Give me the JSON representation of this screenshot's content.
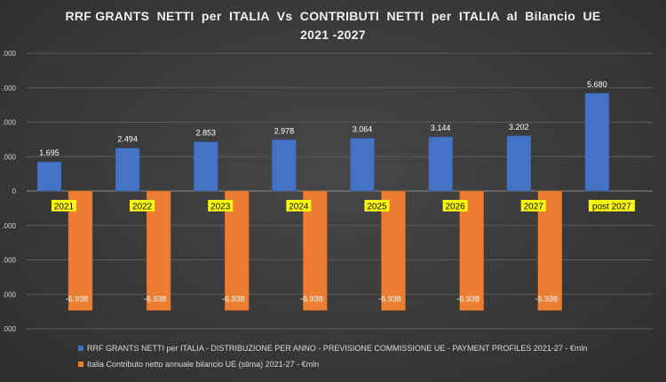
{
  "chart_data": {
    "type": "bar",
    "title_line1": "RRF GRANTS  NETTI  per  ITALIA  Vs  CONTRIBUTI  NETTI  per  ITALIA  al  Bilancio  UE",
    "title_line2": "2021 -2027",
    "categories": [
      "2021",
      "2022",
      "2023",
      "2024",
      "2025",
      "2026",
      "2027",
      "post 2027"
    ],
    "series": [
      {
        "name": "RRF GRANTS NETTI per ITALIA - DISTRIBUZIONE PER ANNO - PREVISIONE COMMISSIONE UE - PAYMENT PROFILES 2021-27 - €mln",
        "color": "#4472c4",
        "values": [
          1695,
          2494,
          2853,
          2978,
          3064,
          3144,
          3202,
          5680
        ],
        "labels": [
          "1.695",
          "2.494",
          "2.853",
          "2.978",
          "3.064",
          "3.144",
          "3.202",
          "5.680"
        ]
      },
      {
        "name": "Italia Contributo netto annuale bilancio UE (stima) 2021-27 - €mln",
        "color": "#ed7d31",
        "values": [
          -6938,
          -6938,
          -6938,
          -6938,
          -6938,
          -6938,
          -6938,
          null
        ],
        "labels": [
          "-6.938",
          "-6.938",
          "-6.938",
          "-6.938",
          "-6.938",
          "-6.938",
          "-6.938",
          ""
        ]
      }
    ],
    "yticks": [
      {
        "value": 8000,
        "label": ".000"
      },
      {
        "value": 6000,
        "label": ".000"
      },
      {
        "value": 4000,
        "label": ".000"
      },
      {
        "value": 2000,
        "label": ".000"
      },
      {
        "value": 0,
        "label": "0"
      },
      {
        "value": -2000,
        "label": ".000"
      },
      {
        "value": -4000,
        "label": ".000"
      },
      {
        "value": -6000,
        "label": ".000"
      },
      {
        "value": -8000,
        "label": ".000"
      }
    ],
    "ylim": [
      -8000,
      8000
    ],
    "grid": true,
    "legend_position": "bottom",
    "category_label_background": "#ffff00"
  }
}
